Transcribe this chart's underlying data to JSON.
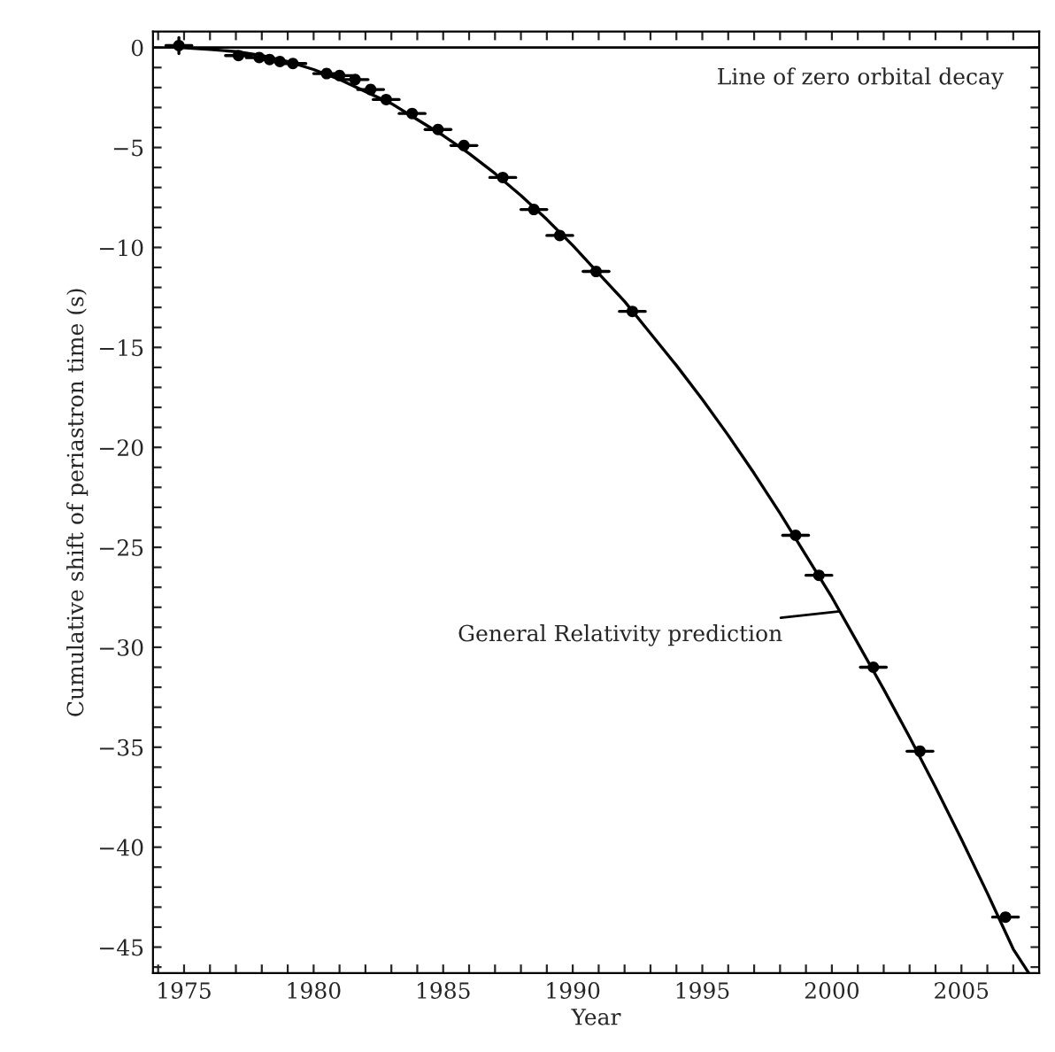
{
  "chart_data": {
    "type": "scatter",
    "xlabel": "Year",
    "ylabel": "Cumulative shift of periastron time (s)",
    "xlim": [
      1973.8,
      2008.0
    ],
    "ylim": [
      -46.3,
      0.8
    ],
    "xticks": [
      {
        "value": 1974,
        "label": null
      },
      1975,
      {
        "value": 1976,
        "label": null
      },
      {
        "value": 1977,
        "label": null
      },
      {
        "value": 1978,
        "label": null
      },
      {
        "value": 1979,
        "label": null
      },
      1980,
      {
        "value": 1981,
        "label": null
      },
      {
        "value": 1982,
        "label": null
      },
      {
        "value": 1983,
        "label": null
      },
      {
        "value": 1984,
        "label": null
      },
      1985,
      {
        "value": 1986,
        "label": null
      },
      {
        "value": 1987,
        "label": null
      },
      {
        "value": 1988,
        "label": null
      },
      {
        "value": 1989,
        "label": null
      },
      1990,
      {
        "value": 1991,
        "label": null
      },
      {
        "value": 1992,
        "label": null
      },
      {
        "value": 1993,
        "label": null
      },
      {
        "value": 1994,
        "label": null
      },
      1995,
      {
        "value": 1996,
        "label": null
      },
      {
        "value": 1997,
        "label": null
      },
      {
        "value": 1998,
        "label": null
      },
      {
        "value": 1999,
        "label": null
      },
      2000,
      {
        "value": 2001,
        "label": null
      },
      {
        "value": 2002,
        "label": null
      },
      {
        "value": 2003,
        "label": null
      },
      {
        "value": 2004,
        "label": null
      },
      2005,
      {
        "value": 2006,
        "label": null
      },
      {
        "value": 2007,
        "label": null
      }
    ],
    "yticks": [
      0,
      {
        "value": -1,
        "label": null
      },
      {
        "value": -2,
        "label": null
      },
      {
        "value": -3,
        "label": null
      },
      {
        "value": -4,
        "label": null
      },
      -5,
      {
        "value": -6,
        "label": null
      },
      {
        "value": -7,
        "label": null
      },
      {
        "value": -8,
        "label": null
      },
      {
        "value": -9,
        "label": null
      },
      -10,
      {
        "value": -11,
        "label": null
      },
      {
        "value": -12,
        "label": null
      },
      {
        "value": -13,
        "label": null
      },
      {
        "value": -14,
        "label": null
      },
      -15,
      {
        "value": -16,
        "label": null
      },
      {
        "value": -17,
        "label": null
      },
      {
        "value": -18,
        "label": null
      },
      {
        "value": -19,
        "label": null
      },
      -20,
      {
        "value": -21,
        "label": null
      },
      {
        "value": -22,
        "label": null
      },
      {
        "value": -23,
        "label": null
      },
      {
        "value": -24,
        "label": null
      },
      -25,
      {
        "value": -26,
        "label": null
      },
      {
        "value": -27,
        "label": null
      },
      {
        "value": -28,
        "label": null
      },
      {
        "value": -29,
        "label": null
      },
      -30,
      {
        "value": -31,
        "label": null
      },
      {
        "value": -32,
        "label": null
      },
      {
        "value": -33,
        "label": null
      },
      {
        "value": -34,
        "label": null
      },
      -35,
      {
        "value": -36,
        "label": null
      },
      {
        "value": -37,
        "label": null
      },
      {
        "value": -38,
        "label": null
      },
      {
        "value": -39,
        "label": null
      },
      -40,
      {
        "value": -41,
        "label": null
      },
      {
        "value": -42,
        "label": null
      },
      {
        "value": -43,
        "label": null
      },
      {
        "value": -44,
        "label": null
      },
      -45,
      {
        "value": -46,
        "label": null
      }
    ],
    "grid": false,
    "legend": false,
    "series": [
      {
        "color": "#000000",
        "marker": "circle",
        "x": [
          1974.8,
          1977.1,
          1977.9,
          1978.3,
          1978.7,
          1979.2,
          1980.5,
          1981.0,
          1981.6,
          1982.2,
          1982.8,
          1983.8,
          1984.8,
          1985.8,
          1987.3,
          1988.5,
          1989.5,
          1990.9,
          1992.3,
          1998.6,
          1999.5,
          2001.6,
          2003.4,
          2006.7
        ],
        "values": [
          0.1,
          -0.4,
          -0.5,
          -0.6,
          -0.7,
          -0.8,
          -1.3,
          -1.4,
          -1.6,
          -2.1,
          -2.6,
          -3.3,
          -4.1,
          -4.9,
          -6.5,
          -8.1,
          -9.4,
          -11.2,
          -13.2,
          -24.4,
          -26.4,
          -31.0,
          -35.2,
          -43.5
        ],
        "errors": [
          0.4,
          null,
          null,
          null,
          null,
          null,
          null,
          null,
          null,
          null,
          null,
          null,
          null,
          null,
          null,
          null,
          null,
          null,
          null,
          null,
          null,
          null,
          null,
          null
        ],
        "xerrors": [
          0.5,
          0.5,
          0.5,
          0.5,
          0.5,
          0.5,
          0.5,
          0.5,
          0.5,
          0.5,
          0.5,
          0.5,
          0.5,
          0.5,
          0.5,
          0.5,
          0.5,
          0.5,
          0.5,
          0.5,
          0.5,
          0.5,
          0.5,
          0.5
        ]
      },
      {
        "type": "line",
        "color": "#000000",
        "line_style": "solid",
        "marker": "none",
        "x": [
          1974.8,
          1976,
          1977,
          1978,
          1979,
          1980,
          1981,
          1982,
          1983,
          1984,
          1985,
          1986,
          1987,
          1988,
          1989,
          1990,
          1991,
          1992,
          1993,
          1994,
          1995,
          1996,
          1997,
          1998,
          1999,
          2000,
          2001,
          2002,
          2003,
          2004,
          2005,
          2006,
          2007,
          2007.6
        ],
        "values": [
          0,
          -0.1,
          -0.2,
          -0.4,
          -0.7,
          -1.1,
          -1.6,
          -2.2,
          -2.8,
          -3.6,
          -4.4,
          -5.3,
          -6.3,
          -7.4,
          -8.6,
          -9.9,
          -11.3,
          -12.7,
          -14.3,
          -15.9,
          -17.6,
          -19.4,
          -21.3,
          -23.3,
          -25.4,
          -27.5,
          -29.8,
          -32.1,
          -34.5,
          -37.0,
          -39.6,
          -42.3,
          -45.1,
          -46.3
        ]
      }
    ],
    "ref_lines": [
      {
        "axis": "y",
        "value": 0,
        "label": "Line of zero orbital decay",
        "color": "#000000",
        "line_style": "solid"
      }
    ],
    "annotations": [
      {
        "text": "General Relativity prediction",
        "x": 2000.3,
        "y": -28.2
      }
    ]
  }
}
